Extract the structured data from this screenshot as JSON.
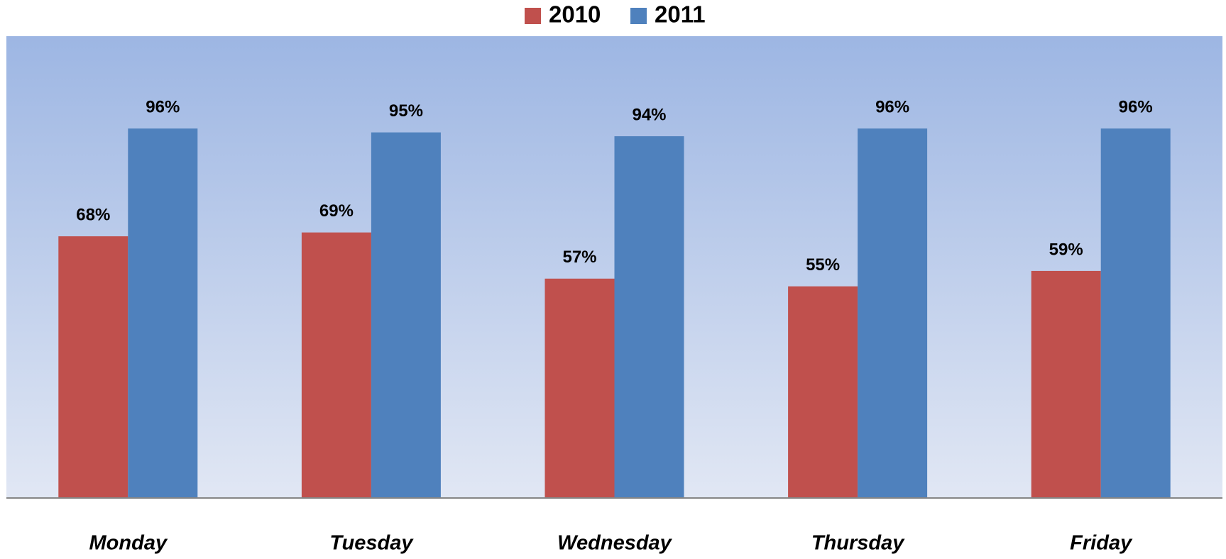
{
  "chart_data": {
    "type": "bar",
    "categories": [
      "Monday",
      "Tuesday",
      "Wednesday",
      "Thursday",
      "Friday"
    ],
    "series": [
      {
        "name": "2010",
        "color": "#c0504d",
        "values": [
          68,
          69,
          57,
          55,
          59
        ],
        "value_labels": [
          "68%",
          "69%",
          "57%",
          "55%",
          "59%"
        ]
      },
      {
        "name": "2011",
        "color": "#4f81bd",
        "values": [
          96,
          95,
          94,
          96,
          96
        ],
        "value_labels": [
          "96%",
          "95%",
          "94%",
          "96%",
          "96%"
        ]
      }
    ],
    "ylim": [
      0,
      120
    ],
    "legend": "top"
  }
}
